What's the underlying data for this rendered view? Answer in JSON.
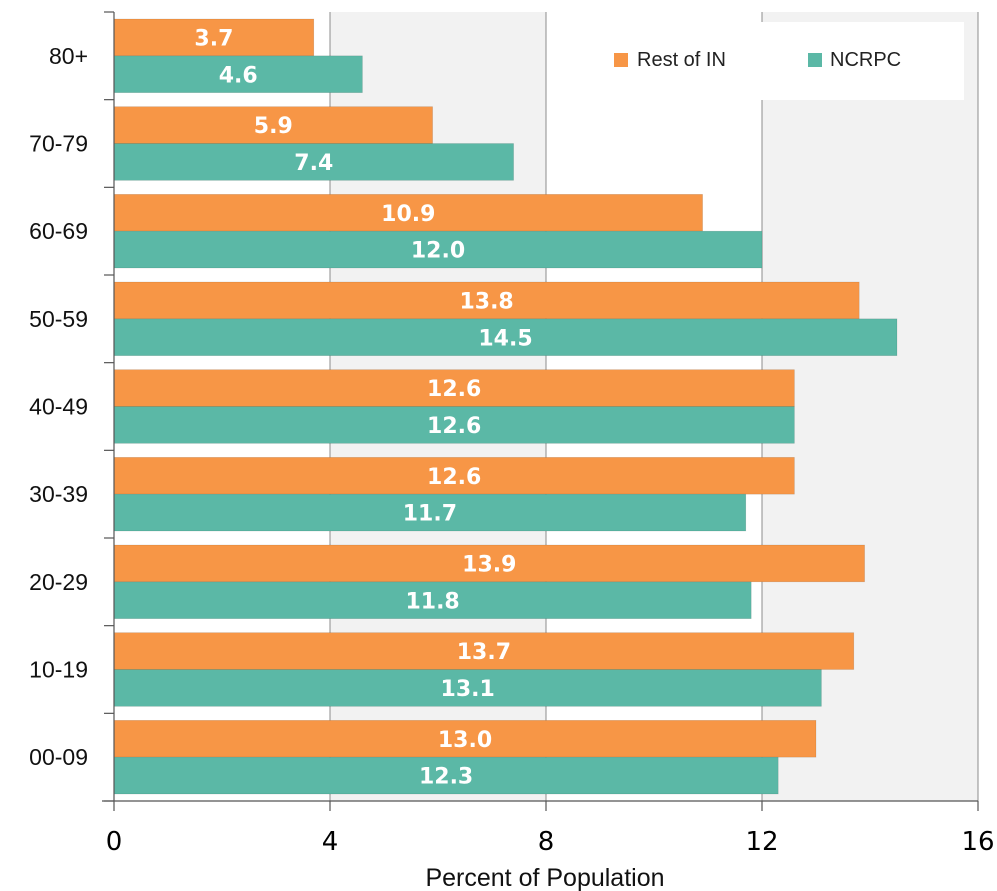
{
  "chart_data": {
    "type": "bar",
    "orientation": "horizontal",
    "categories": [
      "80+",
      "70-79",
      "60-69",
      "50-59",
      "40-49",
      "30-39",
      "20-29",
      "10-19",
      "00-09"
    ],
    "series": [
      {
        "name": "Rest of IN",
        "color": "#F79646",
        "values": [
          3.7,
          5.9,
          10.9,
          13.8,
          12.6,
          12.6,
          13.9,
          13.7,
          13.0
        ],
        "labels": [
          "3.7",
          "5.9",
          "10.9",
          "13.8",
          "12.6",
          "12.6",
          "13.9",
          "13.7",
          "13.0"
        ]
      },
      {
        "name": "NCRPC",
        "color": "#5BB8A6",
        "values": [
          4.6,
          7.4,
          12.0,
          14.5,
          12.6,
          11.7,
          11.8,
          13.1,
          12.3
        ],
        "labels": [
          "4.6",
          "7.4",
          "12.0",
          "14.5",
          "12.6",
          "11.7",
          "11.8",
          "13.1",
          "12.3"
        ]
      }
    ],
    "xlabel": "Percent of Population",
    "xlim": [
      0,
      16
    ],
    "xticks": [
      0,
      4,
      8,
      12,
      16
    ],
    "xtick_labels": [
      "0",
      "4",
      "8",
      "12",
      "16"
    ],
    "grid": "vertical",
    "legend_position": "top-right",
    "background_bands": [
      "#ffffff",
      "#f2f2f2"
    ]
  }
}
